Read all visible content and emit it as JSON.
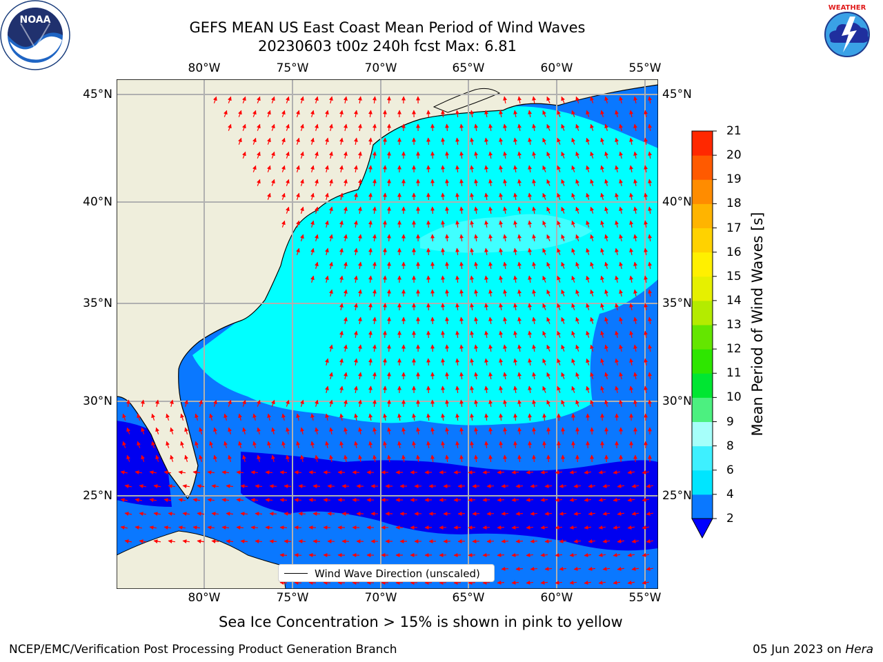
{
  "title": {
    "line1": "GEFS MEAN US East Coast Mean Period of Wind Waves",
    "line2": "20230603 t00z 240h fcst   Max: 6.81"
  },
  "map": {
    "lon_labels": [
      "80°W",
      "75°W",
      "70°W",
      "65°W",
      "60°W",
      "55°W"
    ],
    "lat_labels": [
      "45°N",
      "40°N",
      "35°N",
      "30°N",
      "25°N"
    ],
    "lon_range": [
      -85,
      -54.3
    ],
    "lat_range": [
      20.5,
      46.3
    ],
    "legend_label": "Wind Wave Direction (unscaled)"
  },
  "colorbar": {
    "label": "Mean Period of Wind Waves [s]",
    "ticks": [
      "2",
      "4",
      "6",
      "8",
      "9",
      "10",
      "11",
      "12",
      "13",
      "14",
      "15",
      "16",
      "17",
      "18",
      "19",
      "20",
      "21"
    ],
    "colors": [
      "#0a78ff",
      "#00e5ff",
      "#3ef0ff",
      "#a6fffa",
      "#4cf080",
      "#00e632",
      "#2ee600",
      "#64e600",
      "#b4eb00",
      "#e6f000",
      "#fff000",
      "#ffd200",
      "#ffb400",
      "#ff8c00",
      "#ff5a00",
      "#ff2800",
      "#ff0000"
    ],
    "under_color": "#0000ff"
  },
  "colors": {
    "land": "#efeedc",
    "deep_blue": "#0000f0",
    "blue": "#0a78ff",
    "cyan": "#00ffff",
    "light_cyan": "#40ffff",
    "arrow": "#ff0000",
    "grid": "#b0b0b0"
  },
  "notes": {
    "sea_ice": "Sea Ice Concentration > 15% is shown in pink to yellow",
    "branch": "NCEP/EMC/Verification Post Processing Product Generation Branch",
    "date_prefix": "05 Jun 2023 on ",
    "machine": "Hera"
  },
  "logos": {
    "noaa": "NOAA",
    "nws": "NATIONAL WEATHER SERVICE"
  }
}
